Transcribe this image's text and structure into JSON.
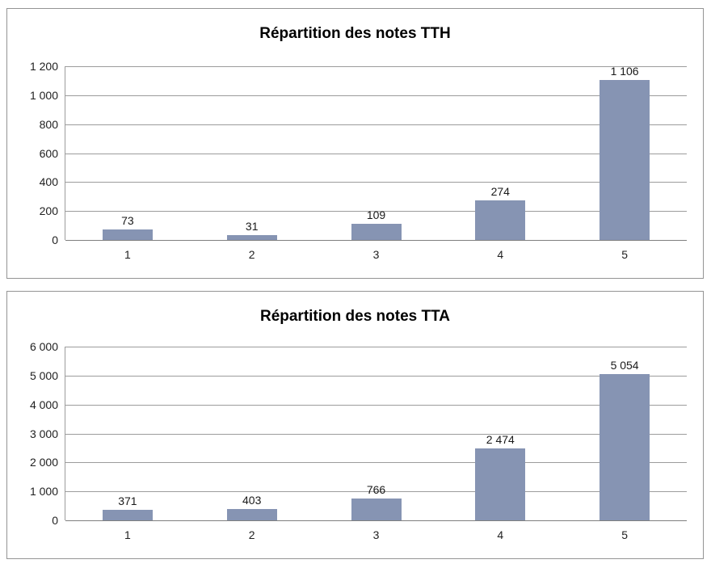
{
  "page": {
    "background": "#ffffff"
  },
  "colors": {
    "bar_fill": "#8694b3",
    "gridline": "#9c9c9c",
    "axis_line": "#7f7f7f",
    "panel_border": "#949494",
    "title_text": "#000000",
    "tick_text": "#1f1f1f"
  },
  "chart_data": [
    {
      "type": "bar",
      "title": "Répartition des notes TTH",
      "categories": [
        "1",
        "2",
        "3",
        "4",
        "5"
      ],
      "values": [
        73,
        31,
        109,
        274,
        1106
      ],
      "value_labels": [
        "73",
        "31",
        "109",
        "274",
        "1 106"
      ],
      "xlabel": "",
      "ylabel": "",
      "ylim": [
        0,
        1200
      ],
      "yticks": [
        0,
        200,
        400,
        600,
        800,
        1000,
        1200
      ],
      "ytick_labels": [
        "0",
        "200",
        "400",
        "600",
        "800",
        "1 000",
        "1 200"
      ],
      "grid": true,
      "legend_position": "none"
    },
    {
      "type": "bar",
      "title": "Répartition des notes TTA",
      "categories": [
        "1",
        "2",
        "3",
        "4",
        "5"
      ],
      "values": [
        371,
        403,
        766,
        2474,
        5054
      ],
      "value_labels": [
        "371",
        "403",
        "766",
        "2 474",
        "5 054"
      ],
      "xlabel": "",
      "ylabel": "",
      "ylim": [
        0,
        6000
      ],
      "yticks": [
        0,
        1000,
        2000,
        3000,
        4000,
        5000,
        6000
      ],
      "ytick_labels": [
        "0",
        "1 000",
        "2 000",
        "3 000",
        "4 000",
        "5 000",
        "6 000"
      ],
      "grid": true,
      "legend_position": "none"
    }
  ]
}
